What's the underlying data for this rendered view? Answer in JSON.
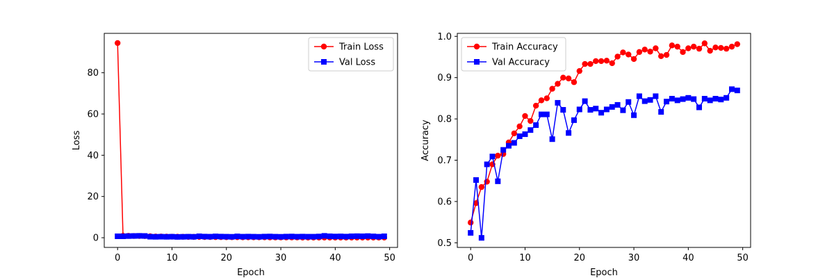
{
  "chart_data": [
    {
      "type": "line",
      "title": "",
      "xlabel": "Epoch",
      "ylabel": "Loss",
      "xlim": [
        -2.45,
        51.45
      ],
      "ylim": [
        -4.7,
        99.1
      ],
      "xticks": [
        0,
        10,
        20,
        30,
        40,
        50
      ],
      "yticks": [
        0,
        20,
        40,
        60,
        80
      ],
      "legend_position": "upper right",
      "x": [
        0,
        1,
        2,
        3,
        4,
        5,
        6,
        7,
        8,
        9,
        10,
        11,
        12,
        13,
        14,
        15,
        16,
        17,
        18,
        19,
        20,
        21,
        22,
        23,
        24,
        25,
        26,
        27,
        28,
        29,
        30,
        31,
        32,
        33,
        34,
        35,
        36,
        37,
        38,
        39,
        40,
        41,
        42,
        43,
        44,
        45,
        46,
        47,
        48,
        49
      ],
      "series": [
        {
          "name": "Train Loss",
          "color": "#ff0000",
          "marker": "circle",
          "values": [
            94.4,
            0.95,
            0.9,
            0.85,
            0.85,
            0.8,
            0.7,
            0.6,
            0.6,
            0.55,
            0.5,
            0.5,
            0.45,
            0.4,
            0.4,
            0.4,
            0.35,
            0.35,
            0.3,
            0.3,
            0.25,
            0.25,
            0.25,
            0.2,
            0.2,
            0.2,
            0.2,
            0.2,
            0.15,
            0.15,
            0.15,
            0.15,
            0.15,
            0.15,
            0.1,
            0.1,
            0.1,
            0.1,
            0.1,
            0.1,
            0.1,
            0.1,
            0.1,
            0.1,
            0.1,
            0.1,
            0.1,
            0.1,
            0.1,
            0.1
          ]
        },
        {
          "name": "Val Loss",
          "color": "#0000ff",
          "marker": "square",
          "values": [
            0.7,
            0.7,
            0.8,
            0.85,
            0.9,
            0.85,
            0.5,
            0.45,
            0.5,
            0.45,
            0.5,
            0.4,
            0.45,
            0.5,
            0.45,
            0.7,
            0.55,
            0.5,
            0.65,
            0.55,
            0.5,
            0.45,
            0.65,
            0.5,
            0.55,
            0.5,
            0.45,
            0.55,
            0.6,
            0.5,
            0.45,
            0.55,
            0.6,
            0.5,
            0.55,
            0.5,
            0.5,
            0.6,
            0.9,
            0.7,
            0.6,
            0.65,
            0.55,
            0.7,
            0.75,
            0.7,
            0.8,
            0.65,
            0.5,
            0.7
          ]
        }
      ]
    },
    {
      "type": "line",
      "title": "",
      "xlabel": "Epoch",
      "ylabel": "Accuracy",
      "xlim": [
        -2.45,
        51.45
      ],
      "ylim": [
        0.4888,
        1.0072
      ],
      "xticks": [
        0,
        10,
        20,
        30,
        40,
        50
      ],
      "yticks": [
        0.5,
        0.6,
        0.7,
        0.8,
        0.9,
        1.0
      ],
      "ytick_labels": [
        "0.5",
        "0.6",
        "0.7",
        "0.8",
        "0.9",
        "1.0"
      ],
      "legend_position": "upper left",
      "x": [
        0,
        1,
        2,
        3,
        4,
        5,
        6,
        7,
        8,
        9,
        10,
        11,
        12,
        13,
        14,
        15,
        16,
        17,
        18,
        19,
        20,
        21,
        22,
        23,
        24,
        25,
        26,
        27,
        28,
        29,
        30,
        31,
        32,
        33,
        34,
        35,
        36,
        37,
        38,
        39,
        40,
        41,
        42,
        43,
        44,
        45,
        46,
        47,
        48,
        49
      ],
      "series": [
        {
          "name": "Train Accuracy",
          "color": "#ff0000",
          "marker": "circle",
          "values": [
            0.549,
            0.596,
            0.635,
            0.648,
            0.69,
            0.711,
            0.715,
            0.743,
            0.765,
            0.782,
            0.807,
            0.795,
            0.832,
            0.845,
            0.85,
            0.873,
            0.885,
            0.9,
            0.898,
            0.889,
            0.916,
            0.933,
            0.933,
            0.94,
            0.94,
            0.941,
            0.935,
            0.951,
            0.961,
            0.956,
            0.945,
            0.962,
            0.968,
            0.963,
            0.971,
            0.952,
            0.955,
            0.978,
            0.975,
            0.962,
            0.971,
            0.975,
            0.97,
            0.983,
            0.965,
            0.973,
            0.972,
            0.97,
            0.975,
            0.981
          ]
        },
        {
          "name": "Val Accuracy",
          "color": "#0000ff",
          "marker": "square",
          "values": [
            0.524,
            0.652,
            0.512,
            0.69,
            0.709,
            0.649,
            0.725,
            0.735,
            0.742,
            0.758,
            0.763,
            0.773,
            0.785,
            0.811,
            0.811,
            0.751,
            0.839,
            0.822,
            0.766,
            0.797,
            0.823,
            0.843,
            0.822,
            0.825,
            0.815,
            0.823,
            0.829,
            0.834,
            0.821,
            0.841,
            0.809,
            0.855,
            0.843,
            0.846,
            0.855,
            0.817,
            0.842,
            0.849,
            0.845,
            0.848,
            0.851,
            0.848,
            0.828,
            0.849,
            0.845,
            0.849,
            0.847,
            0.851,
            0.872,
            0.869
          ]
        }
      ]
    }
  ]
}
